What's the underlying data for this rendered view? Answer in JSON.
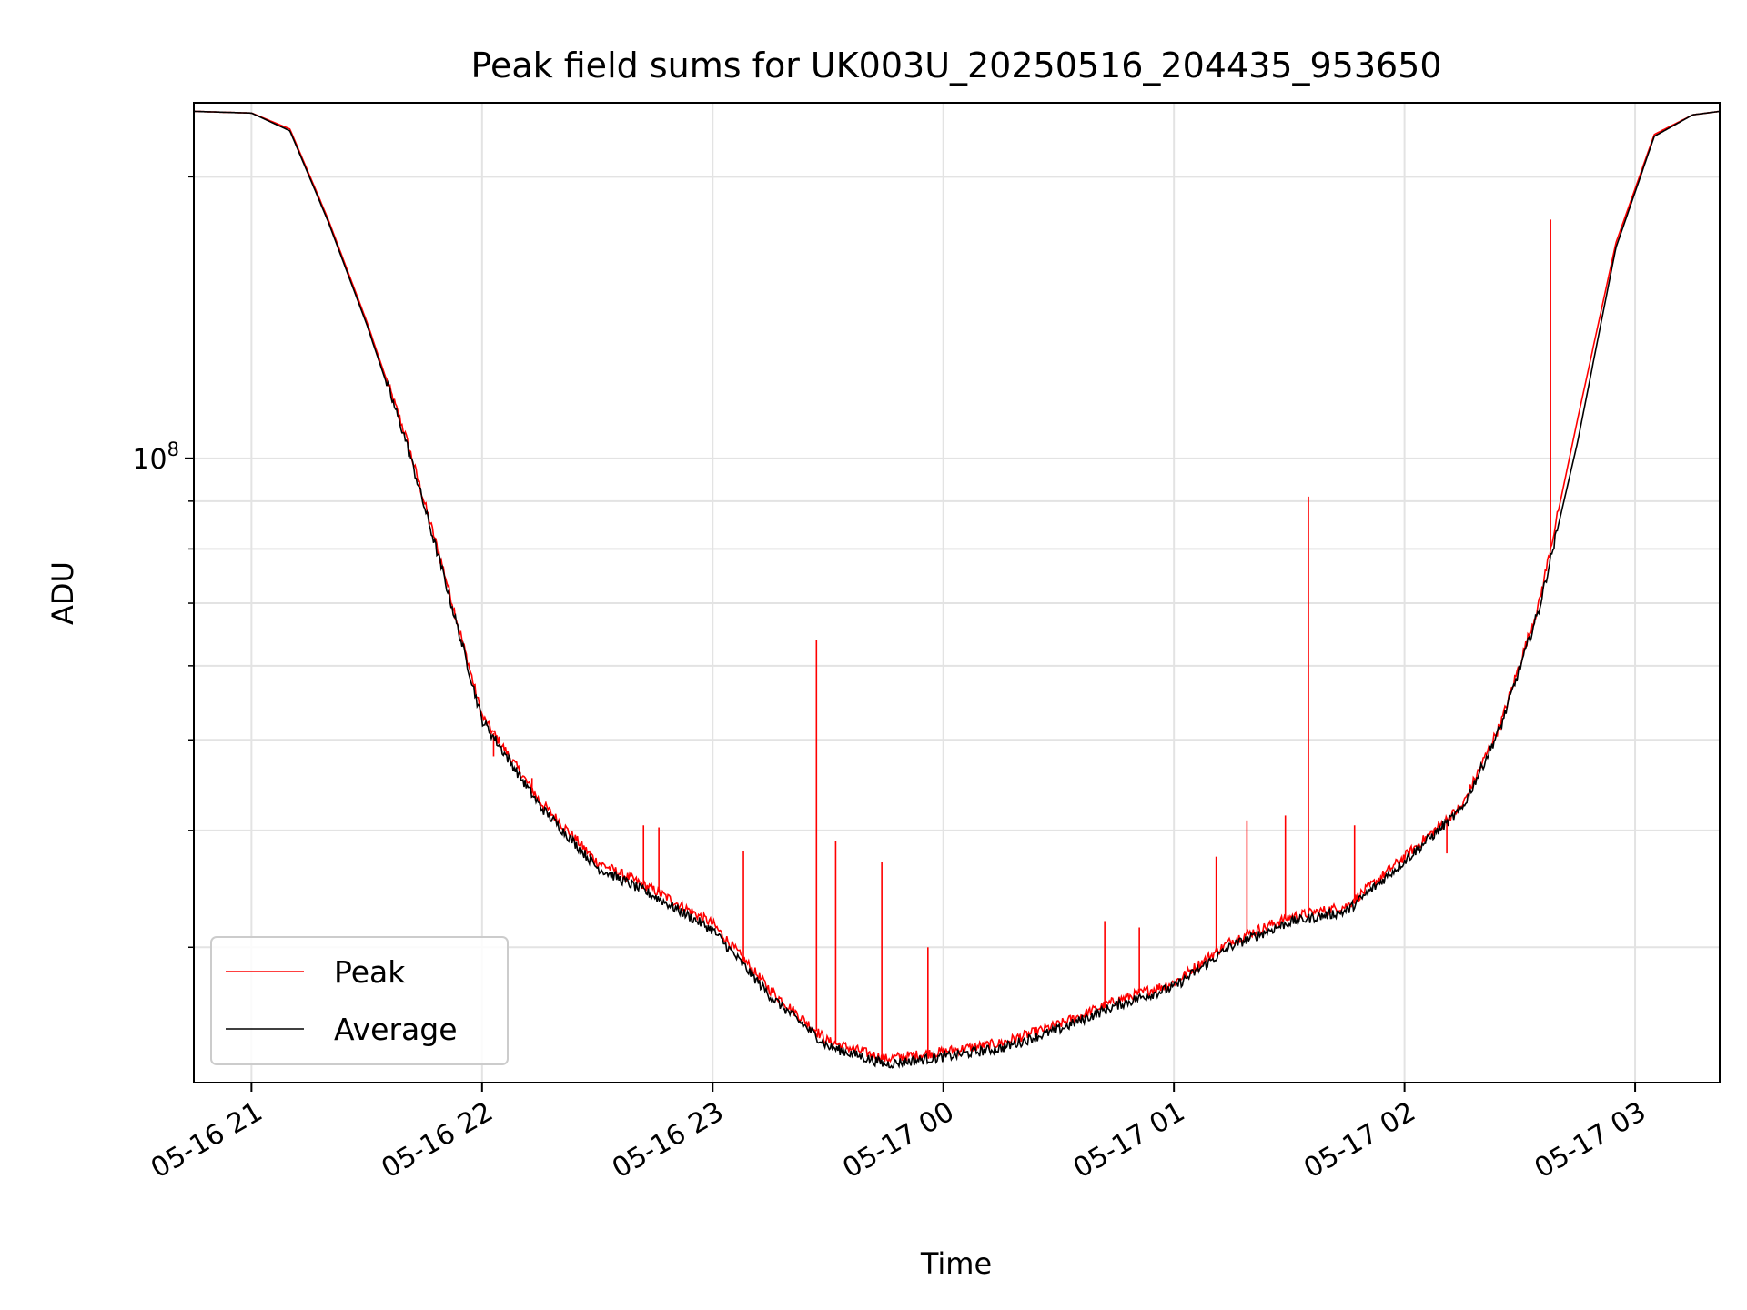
{
  "chart_data": {
    "type": "line",
    "title": "Peak field sums for UK003U_20250516_204435_953650",
    "xlabel": "Time",
    "ylabel": "ADU",
    "x_type": "datetime",
    "xlim": [
      "2025-05-16 20:45",
      "2025-05-17 03:22"
    ],
    "ylim": [
      21500000,
      240000000
    ],
    "y_scale": "log",
    "x_ticks": [
      "05-16 21",
      "05-16 22",
      "05-16 23",
      "05-17 00",
      "05-17 01",
      "05-17 02",
      "05-17 03"
    ],
    "y_major_tick": "10^8",
    "grid": true,
    "legend_position": "lower-left",
    "series": [
      {
        "name": "Peak",
        "color": "#ff0000",
        "x": [
          "2025-05-16 20:45",
          "2025-05-16 21:00",
          "2025-05-16 21:10",
          "2025-05-16 21:20",
          "2025-05-16 21:30",
          "2025-05-16 21:40",
          "2025-05-16 21:50",
          "2025-05-16 22:00",
          "2025-05-16 22:15",
          "2025-05-16 22:30",
          "2025-05-16 22:45",
          "2025-05-16 23:00",
          "2025-05-16 23:15",
          "2025-05-16 23:30",
          "2025-05-16 23:45",
          "2025-05-17 00:00",
          "2025-05-17 00:15",
          "2025-05-17 00:30",
          "2025-05-17 00:45",
          "2025-05-17 01:00",
          "2025-05-17 01:15",
          "2025-05-17 01:30",
          "2025-05-17 01:45",
          "2025-05-17 02:00",
          "2025-05-17 02:15",
          "2025-05-17 02:25",
          "2025-05-17 02:35",
          "2025-05-17 02:45",
          "2025-05-17 02:55",
          "2025-05-17 03:05",
          "2025-05-17 03:15",
          "2025-05-17 03:22"
        ],
        "values": [
          235000000,
          234000000,
          225000000,
          180000000,
          140000000,
          106000000,
          76000000,
          53000000,
          43000000,
          37000000,
          34500000,
          31800000,
          27000000,
          23800000,
          22800000,
          23200000,
          23700000,
          24800000,
          26300000,
          27500000,
          30500000,
          32300000,
          33200000,
          37500000,
          42500000,
          52000000,
          70000000,
          110000000,
          170000000,
          222000000,
          233000000,
          235000000
        ],
        "spikes": [
          {
            "x": "2025-05-16 22:03",
            "value": 48000000
          },
          {
            "x": "2025-05-16 22:10",
            "value": 46000000
          },
          {
            "x": "2025-05-16 22:13",
            "value": 45500000
          },
          {
            "x": "2025-05-16 22:28",
            "value": 37500000
          },
          {
            "x": "2025-05-16 22:42",
            "value": 40500000
          },
          {
            "x": "2025-05-16 22:46",
            "value": 40300000
          },
          {
            "x": "2025-05-16 23:08",
            "value": 38000000
          },
          {
            "x": "2025-05-16 23:27",
            "value": 64000000
          },
          {
            "x": "2025-05-16 23:32",
            "value": 39000000
          },
          {
            "x": "2025-05-16 23:44",
            "value": 37000000
          },
          {
            "x": "2025-05-16 23:56",
            "value": 30000000
          },
          {
            "x": "2025-05-17 00:42",
            "value": 32000000
          },
          {
            "x": "2025-05-17 00:51",
            "value": 31500000
          },
          {
            "x": "2025-05-17 01:11",
            "value": 37500000
          },
          {
            "x": "2025-05-17 01:19",
            "value": 41000000
          },
          {
            "x": "2025-05-17 01:29",
            "value": 41500000
          },
          {
            "x": "2025-05-17 01:35",
            "value": 91000000
          },
          {
            "x": "2025-05-17 01:47",
            "value": 40500000
          },
          {
            "x": "2025-05-17 01:59",
            "value": 37000000
          },
          {
            "x": "2025-05-17 02:11",
            "value": 37800000
          },
          {
            "x": "2025-05-17 02:38",
            "value": 180000000
          }
        ]
      },
      {
        "name": "Average",
        "color": "#000000",
        "x": [
          "2025-05-16 20:45",
          "2025-05-16 21:00",
          "2025-05-16 21:10",
          "2025-05-16 21:20",
          "2025-05-16 21:30",
          "2025-05-16 21:40",
          "2025-05-16 21:50",
          "2025-05-16 22:00",
          "2025-05-16 22:15",
          "2025-05-16 22:30",
          "2025-05-16 22:45",
          "2025-05-16 23:00",
          "2025-05-16 23:15",
          "2025-05-16 23:30",
          "2025-05-16 23:45",
          "2025-05-17 00:00",
          "2025-05-17 00:15",
          "2025-05-17 00:30",
          "2025-05-17 00:45",
          "2025-05-17 01:00",
          "2025-05-17 01:15",
          "2025-05-17 01:30",
          "2025-05-17 01:45",
          "2025-05-17 02:00",
          "2025-05-17 02:15",
          "2025-05-17 02:25",
          "2025-05-17 02:35",
          "2025-05-17 02:45",
          "2025-05-17 02:55",
          "2025-05-17 03:05",
          "2025-05-17 03:15",
          "2025-05-17 03:22"
        ],
        "values": [
          235000000,
          234000000,
          224000000,
          179000000,
          139000000,
          105000000,
          75000000,
          52500000,
          42500000,
          36500000,
          34000000,
          31300000,
          26600000,
          23500000,
          22500000,
          22900000,
          23400000,
          24500000,
          26000000,
          27200000,
          30100000,
          31900000,
          32800000,
          37100000,
          42200000,
          51600000,
          69000000,
          104000000,
          168000000,
          221000000,
          233000000,
          235000000
        ]
      }
    ]
  }
}
